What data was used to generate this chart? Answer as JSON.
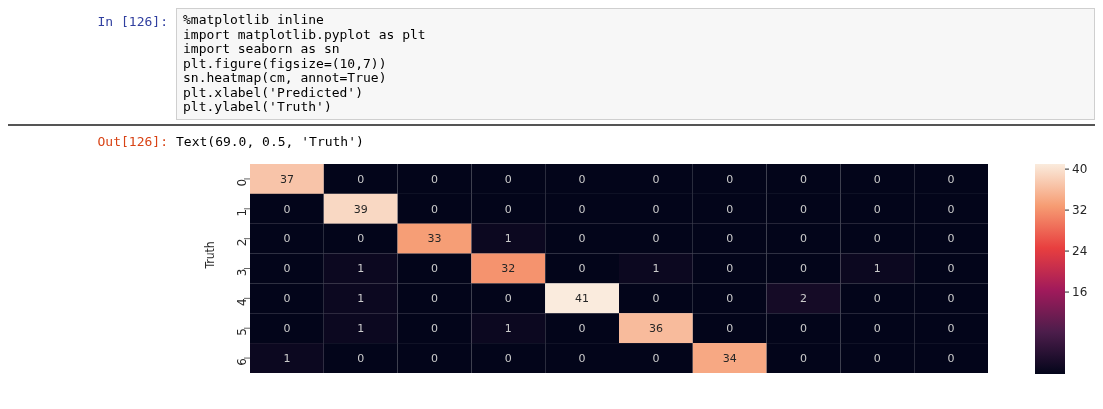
{
  "chart_data": {
    "type": "heatmap",
    "ylabel": "Truth",
    "annotations": [
      "In [126]:",
      "%matplotlib inline",
      "import matplotlib.pyplot as plt",
      "import seaborn as sn",
      "plt.figure(figsize=(10,7))",
      "sn.heatmap(cm, annot=True)",
      "plt.xlabel('Predicted')",
      "plt.ylabel('Truth')",
      "Out[126]:",
      "Text(69.0, 0.5, 'Truth')"
    ],
    "categories": [
      null,
      null,
      null,
      null,
      null,
      null,
      null,
      null,
      null,
      null
    ],
    "y_categories": [
      "0",
      "1",
      "2",
      "3",
      "4",
      "5",
      "6"
    ],
    "cells": [
      [
        37,
        0,
        0,
        0,
        0,
        0,
        0,
        0,
        0,
        0
      ],
      [
        0,
        39,
        0,
        0,
        0,
        0,
        0,
        0,
        0,
        0
      ],
      [
        0,
        0,
        33,
        1,
        0,
        0,
        0,
        0,
        0,
        0
      ],
      [
        0,
        1,
        0,
        32,
        0,
        1,
        0,
        0,
        1,
        0
      ],
      [
        0,
        1,
        0,
        0,
        41,
        0,
        0,
        2,
        0,
        0
      ],
      [
        0,
        1,
        0,
        1,
        0,
        36,
        0,
        0,
        0,
        0
      ],
      [
        1,
        0,
        0,
        0,
        0,
        0,
        34,
        0,
        0,
        0
      ]
    ],
    "data_labels": true,
    "clim": [
      0,
      41
    ],
    "cticks": [
      16,
      24,
      32,
      40
    ]
  }
}
